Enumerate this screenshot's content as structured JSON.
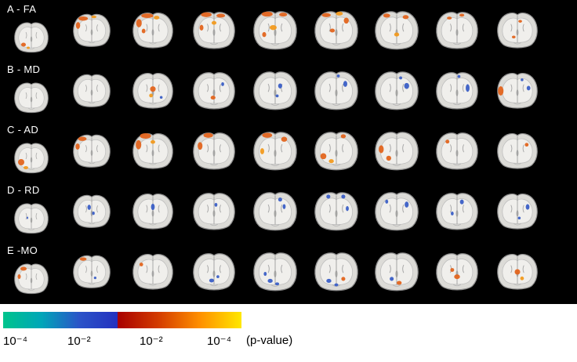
{
  "figure": {
    "background": "#000000",
    "blob_colors": {
      "o": "#e2641e",
      "y": "#f19a1f",
      "b": "#3a5ec6",
      "n": "#27378f"
    },
    "slice_colors": {
      "outer": "#dcdbd7",
      "outer_stroke": "#8d8d8d",
      "inner": "#f0efec",
      "inner_stroke": "#bcbcbc",
      "detail": "#9a9a9a"
    },
    "rows": [
      {
        "label": "A - FA",
        "slices": [
          [
            [
              30,
              62,
              6,
              5,
              "o"
            ],
            [
              42,
              70,
              4,
              3,
              "y"
            ]
          ],
          [
            [
              30,
              16,
              11,
              5,
              "o"
            ],
            [
              18,
              32,
              5,
              8,
              "o"
            ],
            [
              55,
              12,
              6,
              3,
              "y"
            ]
          ],
          [
            [
              38,
              12,
              13,
              5,
              "o"
            ],
            [
              20,
              28,
              6,
              9,
              "o"
            ],
            [
              58,
              16,
              6,
              4,
              "y"
            ],
            [
              30,
              45,
              4,
              5,
              "o"
            ]
          ],
          [
            [
              34,
              11,
              11,
              5,
              "o"
            ],
            [
              64,
              13,
              9,
              4,
              "o"
            ],
            [
              50,
              28,
              5,
              4,
              "y"
            ],
            [
              24,
              38,
              4,
              6,
              "o"
            ]
          ],
          [
            [
              34,
              11,
              11,
              5,
              "o"
            ],
            [
              66,
              12,
              8,
              4,
              "o"
            ],
            [
              46,
              38,
              7,
              5,
              "y"
            ],
            [
              28,
              52,
              4,
              5,
              "o"
            ]
          ],
          [
            [
              30,
              13,
              9,
              4,
              "o"
            ],
            [
              56,
              10,
              7,
              4,
              "y"
            ],
            [
              70,
              24,
              5,
              6,
              "o"
            ],
            [
              42,
              44,
              5,
              4,
              "o"
            ]
          ],
          [
            [
              30,
              14,
              7,
              4,
              "o"
            ],
            [
              68,
              17,
              6,
              4,
              "o"
            ],
            [
              50,
              52,
              5,
              4,
              "y"
            ]
          ],
          [
            [
              34,
              18,
              5,
              3,
              "o"
            ],
            [
              60,
              12,
              5,
              3,
              "o"
            ]
          ],
          [
            [
              56,
              24,
              4,
              3,
              "o"
            ],
            [
              42,
              58,
              4,
              3,
              "o"
            ]
          ]
        ]
      },
      {
        "label": "B - MD",
        "slices": [
          [],
          [],
          [
            [
              50,
              40,
              6,
              6,
              "o"
            ],
            [
              46,
              54,
              4,
              4,
              "y"
            ],
            [
              68,
              58,
              3,
              3,
              "b"
            ]
          ],
          [
            [
              48,
              58,
              5,
              4,
              "o"
            ],
            [
              68,
              30,
              3,
              4,
              "b"
            ]
          ],
          [
            [
              60,
              34,
              4,
              5,
              "b"
            ],
            [
              54,
              54,
              3,
              3,
              "b"
            ]
          ],
          [
            [
              68,
              30,
              4,
              6,
              "b"
            ],
            [
              54,
              14,
              3,
              3,
              "b"
            ]
          ],
          [
            [
              70,
              34,
              5,
              6,
              "b"
            ],
            [
              58,
              18,
              3,
              3,
              "b"
            ]
          ],
          [
            [
              72,
              38,
              4,
              8,
              "b"
            ],
            [
              54,
              14,
              3,
              3,
              "b"
            ]
          ],
          [
            [
              14,
              44,
              6,
              10,
              "o"
            ],
            [
              74,
              38,
              4,
              5,
              "b"
            ],
            [
              60,
              20,
              3,
              3,
              "b"
            ]
          ]
        ]
      },
      {
        "label": "C - AD",
        "slices": [
          [
            [
              24,
              54,
              8,
              8,
              "o"
            ],
            [
              36,
              68,
              6,
              4,
              "y"
            ]
          ],
          [
            [
              28,
              15,
              10,
              5,
              "o"
            ],
            [
              17,
              33,
              5,
              7,
              "o"
            ]
          ],
          [
            [
              34,
              11,
              12,
              6,
              "o"
            ],
            [
              19,
              30,
              6,
              10,
              "o"
            ],
            [
              50,
              24,
              5,
              4,
              "y"
            ]
          ],
          [
            [
              38,
              11,
              10,
              5,
              "o"
            ],
            [
              21,
              33,
              5,
              8,
              "o"
            ]
          ],
          [
            [
              34,
              12,
              10,
              5,
              "o"
            ],
            [
              68,
              20,
              6,
              5,
              "o"
            ],
            [
              24,
              44,
              4,
              6,
              "y"
            ]
          ],
          [
            [
              24,
              54,
              6,
              6,
              "o"
            ],
            [
              40,
              64,
              5,
              4,
              "y"
            ],
            [
              64,
              14,
              5,
              4,
              "o"
            ]
          ],
          [
            [
              19,
              40,
              5,
              8,
              "o"
            ],
            [
              34,
              58,
              5,
              5,
              "o"
            ]
          ],
          [
            [
              30,
              24,
              4,
              4,
              "o"
            ]
          ],
          [
            [
              70,
              30,
              4,
              4,
              "o"
            ]
          ]
        ]
      },
      {
        "label": "D - RD",
        "slices": [
          [
            [
              40,
              42,
              2,
              3,
              "b"
            ]
          ],
          [
            [
              44,
              34,
              4,
              6,
              "b"
            ],
            [
              54,
              48,
              3,
              4,
              "b"
            ]
          ],
          [
            [
              50,
              34,
              4,
              7,
              "b"
            ]
          ],
          [
            [
              54,
              30,
              3,
              4,
              "b"
            ]
          ],
          [
            [
              60,
              20,
              4,
              4,
              "b"
            ],
            [
              68,
              34,
              3,
              5,
              "b"
            ]
          ],
          [
            [
              34,
              14,
              4,
              4,
              "b"
            ],
            [
              64,
              14,
              4,
              4,
              "b"
            ],
            [
              72,
              38,
              3,
              5,
              "b"
            ]
          ],
          [
            [
              70,
              30,
              4,
              6,
              "b"
            ],
            [
              30,
              24,
              3,
              4,
              "b"
            ]
          ],
          [
            [
              60,
              24,
              4,
              5,
              "b"
            ],
            [
              40,
              48,
              3,
              4,
              "b"
            ]
          ],
          [
            [
              72,
              34,
              4,
              6,
              "b"
            ],
            [
              54,
              58,
              3,
              3,
              "b"
            ]
          ]
        ]
      },
      {
        "label": "E -MO",
        "slices": [
          [
            [
              30,
              18,
              8,
              5,
              "o"
            ],
            [
              19,
              38,
              4,
              6,
              "o"
            ]
          ],
          [
            [
              30,
              14,
              8,
              4,
              "o"
            ],
            [
              58,
              58,
              3,
              3,
              "b"
            ]
          ],
          [
            [
              25,
              28,
              4,
              4,
              "o"
            ]
          ],
          [
            [
              45,
              62,
              5,
              4,
              "b"
            ],
            [
              58,
              54,
              3,
              3,
              "b"
            ]
          ],
          [
            [
              40,
              62,
              5,
              4,
              "b"
            ],
            [
              54,
              68,
              4,
              3,
              "b"
            ],
            [
              30,
              48,
              3,
              4,
              "b"
            ]
          ],
          [
            [
              35,
              62,
              5,
              4,
              "b"
            ],
            [
              50,
              70,
              4,
              3,
              "b"
            ],
            [
              64,
              58,
              4,
              4,
              "o"
            ]
          ],
          [
            [
              40,
              58,
              4,
              4,
              "b"
            ],
            [
              55,
              66,
              5,
              4,
              "o"
            ]
          ],
          [
            [
              50,
              54,
              6,
              5,
              "o"
            ],
            [
              40,
              40,
              4,
              4,
              "o"
            ]
          ],
          [
            [
              50,
              44,
              6,
              6,
              "o"
            ],
            [
              60,
              58,
              4,
              4,
              "y"
            ]
          ]
        ]
      }
    ]
  },
  "colorbar": {
    "negative_gradient": [
      "#00c48c",
      "#00a6b8",
      "#2b53c8",
      "#2330bf"
    ],
    "positive_gradient": [
      "#a80000",
      "#d43c00",
      "#ff9000",
      "#ffe800"
    ],
    "labels": [
      "10⁻⁴",
      "10⁻²",
      "10⁻²",
      "10⁻⁴"
    ],
    "caption": "(p-value)"
  }
}
